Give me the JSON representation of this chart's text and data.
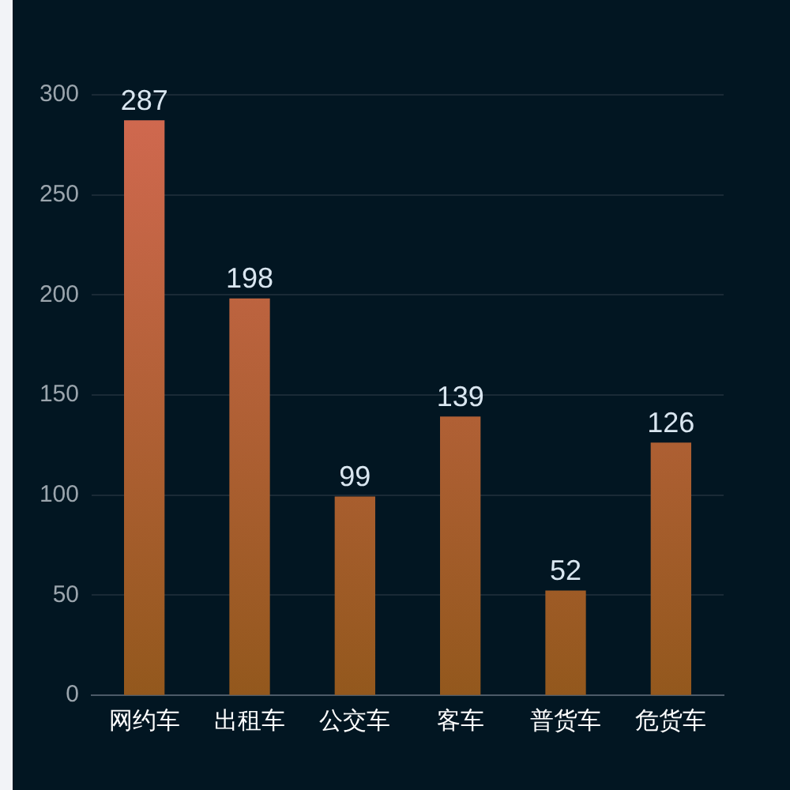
{
  "chart_data": {
    "type": "bar",
    "categories": [
      "网约车",
      "出租车",
      "公交车",
      "客车",
      "普货车",
      "危货车"
    ],
    "values": [
      287,
      198,
      99,
      139,
      52,
      126
    ],
    "color": "#ae5f35",
    "ylim": [
      0,
      300
    ],
    "yticks": [
      0,
      50,
      100,
      150,
      200,
      250,
      300
    ],
    "grid": "y",
    "data_labels": true
  }
}
